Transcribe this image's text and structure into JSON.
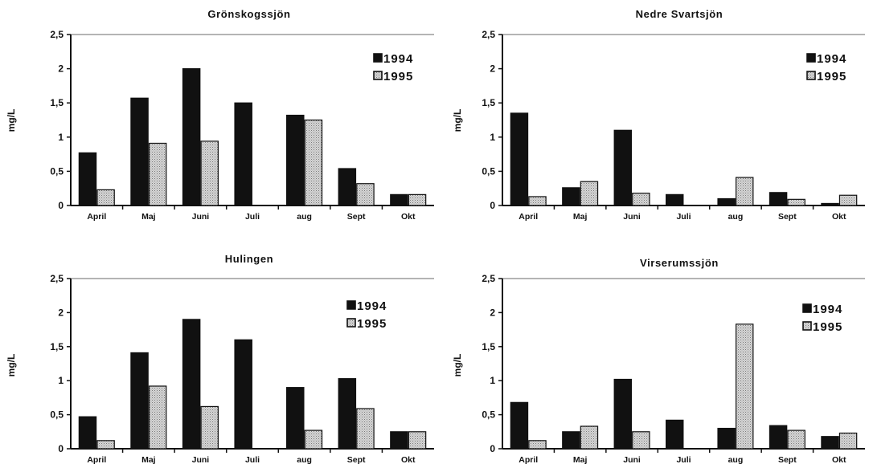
{
  "colors": {
    "s1994": "#111111",
    "s1995": "#d8d8d8",
    "axis": "#111111"
  },
  "chart_data": [
    {
      "type": "bar",
      "title": "Grönskogssjön",
      "ylabel": "mg/L",
      "ylim": [
        0,
        2.5
      ],
      "yticks": [
        "0",
        "0,5",
        "1",
        "1,5",
        "2",
        "2,5"
      ],
      "categories": [
        "April",
        "Maj",
        "Juni",
        "Juli",
        "aug",
        "Sept",
        "Okt"
      ],
      "series": [
        {
          "name": "1994",
          "values": [
            0.77,
            1.57,
            2.0,
            1.5,
            1.32,
            0.54,
            0.16
          ]
        },
        {
          "name": "1995",
          "values": [
            0.23,
            0.91,
            0.94,
            0,
            1.25,
            0.32,
            0.16
          ]
        }
      ],
      "legend": "top-right"
    },
    {
      "type": "bar",
      "title": "Nedre  Svartsjön",
      "ylabel": "mg/L",
      "ylim": [
        0,
        2.5
      ],
      "yticks": [
        "0",
        "0,5",
        "1",
        "1,5",
        "2",
        "2,5"
      ],
      "categories": [
        "April",
        "Maj",
        "Juni",
        "Juli",
        "aug",
        "Sept",
        "Okt"
      ],
      "series": [
        {
          "name": "1994",
          "values": [
            1.35,
            0.26,
            1.1,
            0.16,
            0.1,
            0.19,
            0.03
          ]
        },
        {
          "name": "1995",
          "values": [
            0.13,
            0.35,
            0.18,
            0,
            0.41,
            0.09,
            0.15
          ]
        }
      ],
      "legend": "top-right"
    },
    {
      "type": "bar",
      "title": "Hulingen",
      "ylabel": "mg/L",
      "ylim": [
        0,
        2.5
      ],
      "yticks": [
        "0",
        "0,5",
        "1",
        "1,5",
        "2",
        "2,5"
      ],
      "categories": [
        "April",
        "Maj",
        "Juni",
        "Juli",
        "aug",
        "Sept",
        "Okt"
      ],
      "series": [
        {
          "name": "1994",
          "values": [
            0.47,
            1.41,
            1.9,
            1.6,
            0.9,
            1.03,
            0.25
          ]
        },
        {
          "name": "1995",
          "values": [
            0.12,
            0.92,
            0.62,
            0,
            0.27,
            0.59,
            0.25
          ]
        }
      ],
      "legend": "top-right"
    },
    {
      "type": "bar",
      "title": "Virserumssjön",
      "ylabel": "mg/L",
      "ylim": [
        0,
        2.5
      ],
      "yticks": [
        "0",
        "0,5",
        "1",
        "1,5",
        "2",
        "2,5"
      ],
      "categories": [
        "April",
        "Maj",
        "Juni",
        "Juli",
        "aug",
        "Sept",
        "Okt"
      ],
      "series": [
        {
          "name": "1994",
          "values": [
            0.68,
            0.25,
            1.02,
            0.42,
            0.3,
            0.34,
            0.18
          ]
        },
        {
          "name": "1995",
          "values": [
            0.12,
            0.33,
            0.25,
            0,
            1.83,
            0.27,
            0.23
          ]
        }
      ],
      "legend": "top-right"
    }
  ]
}
